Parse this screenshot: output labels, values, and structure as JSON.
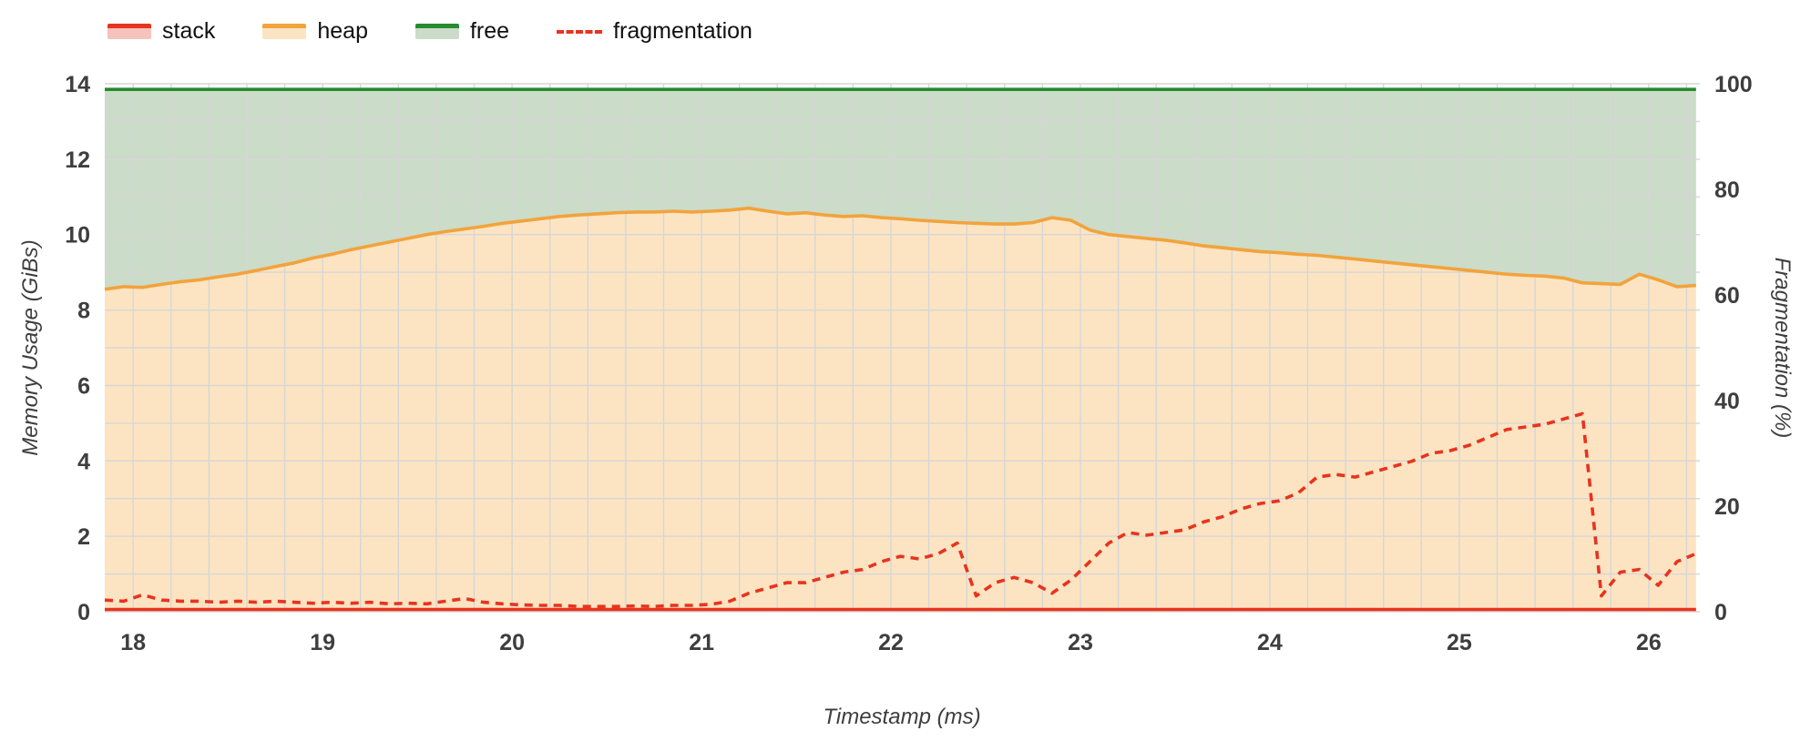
{
  "chart_data": {
    "type": "area",
    "xlabel": "Timestamp (ms)",
    "ylabel_left": "Memory Usage (GiBs)",
    "ylabel_right": "Fragmentation (%)",
    "x_range": [
      17.85,
      26.27
    ],
    "y_left_range": [
      0,
      14
    ],
    "y_right_range": [
      0,
      100
    ],
    "x_ticks": [
      18,
      19,
      20,
      21,
      22,
      23,
      24,
      25,
      26
    ],
    "y_ticks_left": [
      0,
      2,
      4,
      6,
      8,
      10,
      12,
      14
    ],
    "y_ticks_right": [
      0,
      20,
      40,
      60,
      80,
      100
    ],
    "grid": true,
    "minor_x_step": 0.2,
    "minor_y_step": 1,
    "legend_position": "top-left",
    "colors": {
      "red": "#e8331f",
      "red_fill": "#f6c2bc",
      "orange": "#f2a33c",
      "orange_fill": "#fce4c2",
      "green": "#268a2e",
      "green_fill": "#cbdcc8",
      "grid": "#d6d6d6",
      "text": "#3e3e3e"
    },
    "x": [
      17.85,
      17.95,
      18.05,
      18.15,
      18.25,
      18.35,
      18.45,
      18.55,
      18.65,
      18.75,
      18.85,
      18.95,
      19.05,
      19.15,
      19.25,
      19.35,
      19.45,
      19.55,
      19.65,
      19.75,
      19.85,
      19.95,
      20.05,
      20.15,
      20.25,
      20.35,
      20.45,
      20.55,
      20.65,
      20.75,
      20.85,
      20.95,
      21.05,
      21.15,
      21.25,
      21.35,
      21.45,
      21.55,
      21.65,
      21.75,
      21.85,
      21.95,
      22.05,
      22.15,
      22.25,
      22.35,
      22.45,
      22.55,
      22.65,
      22.75,
      22.85,
      22.95,
      23.05,
      23.15,
      23.25,
      23.35,
      23.45,
      23.55,
      23.65,
      23.75,
      23.85,
      23.95,
      24.05,
      24.15,
      24.25,
      24.35,
      24.45,
      24.55,
      24.65,
      24.75,
      24.85,
      24.95,
      25.05,
      25.15,
      25.25,
      25.35,
      25.45,
      25.55,
      25.65,
      25.75,
      25.85,
      25.95,
      26.05,
      26.15,
      26.25
    ],
    "series": [
      {
        "name": "stack",
        "axis": "left",
        "color": "#e8331f",
        "fill": "#f6c2bc",
        "fill_to": 0,
        "area_order": 3,
        "constant": 0.06
      },
      {
        "name": "heap",
        "axis": "left",
        "color": "#f2a33c",
        "fill": "#fce4c2",
        "fill_to": 0,
        "area_order": 1,
        "values": [
          8.55,
          8.62,
          8.6,
          8.68,
          8.75,
          8.8,
          8.88,
          8.95,
          9.05,
          9.15,
          9.25,
          9.38,
          9.48,
          9.6,
          9.7,
          9.8,
          9.9,
          10.0,
          10.08,
          10.15,
          10.22,
          10.3,
          10.36,
          10.42,
          10.48,
          10.52,
          10.55,
          10.58,
          10.6,
          10.6,
          10.62,
          10.6,
          10.62,
          10.65,
          10.7,
          10.62,
          10.55,
          10.58,
          10.52,
          10.48,
          10.5,
          10.45,
          10.42,
          10.38,
          10.35,
          10.32,
          10.3,
          10.28,
          10.28,
          10.32,
          10.45,
          10.38,
          10.12,
          10.0,
          9.95,
          9.9,
          9.85,
          9.78,
          9.7,
          9.65,
          9.6,
          9.55,
          9.52,
          9.48,
          9.45,
          9.4,
          9.35,
          9.3,
          9.25,
          9.2,
          9.15,
          9.1,
          9.05,
          9.0,
          8.95,
          8.92,
          8.9,
          8.85,
          8.72,
          8.7,
          8.68,
          8.95,
          8.8,
          8.62,
          8.65
        ]
      },
      {
        "name": "free",
        "axis": "left",
        "color": "#268a2e",
        "fill": "#cbdcc8",
        "fill_to": "heap",
        "area_order": 2,
        "constant": 13.85
      },
      {
        "name": "fragmentation",
        "axis": "right",
        "color": "#e8331f",
        "dash": true,
        "values": [
          2.2,
          2.0,
          3.2,
          2.2,
          2.0,
          2.0,
          1.8,
          2.0,
          1.8,
          2.0,
          1.8,
          1.6,
          1.8,
          1.6,
          1.8,
          1.5,
          1.6,
          1.5,
          2.0,
          2.5,
          1.8,
          1.5,
          1.3,
          1.2,
          1.2,
          1.0,
          1.0,
          1.0,
          1.1,
          1.0,
          1.2,
          1.2,
          1.4,
          2.0,
          3.5,
          4.5,
          5.5,
          5.5,
          6.5,
          7.5,
          8.0,
          9.5,
          10.5,
          10.0,
          11.0,
          13.0,
          3.0,
          5.5,
          6.5,
          5.5,
          3.5,
          6.0,
          9.5,
          13.0,
          15.0,
          14.5,
          15.0,
          15.5,
          17.0,
          18.0,
          19.5,
          20.5,
          21.0,
          22.5,
          25.5,
          26.0,
          25.5,
          26.5,
          27.5,
          28.5,
          30.0,
          30.5,
          31.5,
          33.0,
          34.5,
          35.0,
          35.5,
          36.5,
          37.5,
          3.0,
          7.5,
          8.0,
          5.0,
          9.5,
          11.0
        ]
      }
    ]
  }
}
